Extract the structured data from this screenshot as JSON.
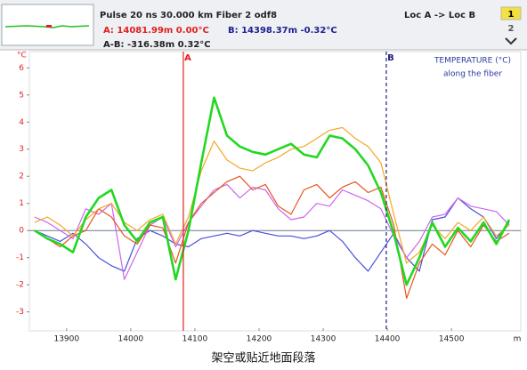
{
  "header": {
    "line1": "Pulse 20 ns  30.000 km  Fiber  2  odf8",
    "cursor_a": "A: 14081.99m  0.00°C",
    "cursor_b": "B: 14398.37m  -0.32°C",
    "delta": "A-B: -316.38m  0.32°C",
    "direction": "Loc A -> Loc B",
    "page1": "1",
    "page2": "2"
  },
  "caption": "架空或贴近地面段落",
  "chart_data": {
    "type": "line",
    "annotation": [
      "TEMPERATURE (°C)",
      "along the fiber"
    ],
    "y_unit": "°C",
    "x_unit": "m",
    "x": [
      13850,
      13870,
      13890,
      13910,
      13930,
      13950,
      13970,
      13990,
      14010,
      14030,
      14050,
      14070,
      14090,
      14110,
      14130,
      14150,
      14170,
      14190,
      14210,
      14230,
      14250,
      14270,
      14290,
      14310,
      14330,
      14350,
      14370,
      14390,
      14410,
      14430,
      14450,
      14470,
      14490,
      14510,
      14530,
      14550,
      14570,
      14590
    ],
    "series": [
      {
        "color": "#4a50d8",
        "values": [
          0.0,
          -0.2,
          -0.4,
          -0.1,
          -0.5,
          -1.0,
          -1.3,
          -1.5,
          -0.3,
          0.0,
          -0.2,
          -0.5,
          -0.6,
          -0.3,
          -0.2,
          -0.1,
          -0.2,
          0.0,
          -0.1,
          -0.2,
          -0.2,
          -0.3,
          -0.2,
          0.0,
          -0.4,
          -1.0,
          -1.5,
          -0.8,
          -0.1,
          -1.0,
          -1.5,
          0.4,
          0.5,
          1.2,
          0.8,
          0.5,
          -0.3,
          0.3
        ]
      },
      {
        "color": "#cc66ee",
        "values": [
          0.5,
          0.3,
          0.0,
          -0.3,
          0.8,
          0.6,
          1.0,
          -1.8,
          -0.8,
          0.2,
          0.5,
          -0.6,
          0.3,
          0.9,
          1.5,
          1.7,
          1.2,
          1.6,
          1.5,
          0.8,
          0.4,
          0.5,
          1.0,
          0.9,
          1.5,
          1.3,
          1.1,
          0.8,
          -0.2,
          -1.0,
          -0.4,
          0.5,
          0.6,
          1.2,
          0.9,
          0.8,
          0.7,
          0.2
        ]
      },
      {
        "color": "#e8541c",
        "values": [
          0.0,
          -0.3,
          -0.6,
          -0.2,
          0.0,
          0.8,
          0.5,
          -0.2,
          -0.5,
          0.2,
          0.1,
          -1.2,
          0.3,
          1.0,
          1.4,
          1.8,
          2.0,
          1.5,
          1.7,
          0.9,
          0.6,
          1.5,
          1.7,
          1.2,
          1.6,
          1.8,
          1.4,
          1.6,
          0.2,
          -2.5,
          -1.2,
          -0.5,
          -0.9,
          0.0,
          -0.6,
          0.2,
          -0.4,
          -0.1
        ]
      },
      {
        "color": "#f5a623",
        "values": [
          0.3,
          0.5,
          0.2,
          -0.2,
          0.4,
          0.8,
          1.0,
          0.3,
          0.0,
          0.4,
          0.6,
          -0.5,
          0.5,
          2.2,
          3.3,
          2.6,
          2.3,
          2.2,
          2.5,
          2.7,
          3.0,
          3.1,
          3.4,
          3.7,
          3.8,
          3.4,
          3.1,
          2.5,
          0.6,
          -1.2,
          -0.8,
          0.2,
          -0.3,
          0.3,
          0.0,
          0.5,
          -0.2,
          0.2
        ]
      },
      {
        "color": "#22d822",
        "values": [
          0.0,
          -0.3,
          -0.5,
          -0.8,
          0.5,
          1.2,
          1.5,
          0.2,
          -0.4,
          0.3,
          0.5,
          -1.8,
          0.0,
          2.5,
          4.9,
          3.5,
          3.1,
          2.9,
          2.8,
          3.0,
          3.2,
          2.8,
          2.7,
          3.5,
          3.4,
          3.0,
          2.4,
          1.4,
          -0.1,
          -2.0,
          -1.0,
          0.3,
          -0.6,
          0.1,
          -0.4,
          0.3,
          -0.5,
          0.4
        ]
      }
    ],
    "markers": [
      {
        "label": "A",
        "x": 14081.99,
        "color": "#e02020"
      },
      {
        "label": "B",
        "x": 14398.37,
        "color": "#202080"
      }
    ],
    "xlim": [
      13842,
      14608
    ],
    "xticks": [
      13900,
      14000,
      14100,
      14200,
      14300,
      14400,
      14500
    ],
    "ylim": [
      -3.7,
      6.6
    ],
    "yticks": [
      6,
      5,
      4,
      3,
      2,
      1,
      0,
      -1,
      -2,
      -3
    ],
    "grid": false
  }
}
